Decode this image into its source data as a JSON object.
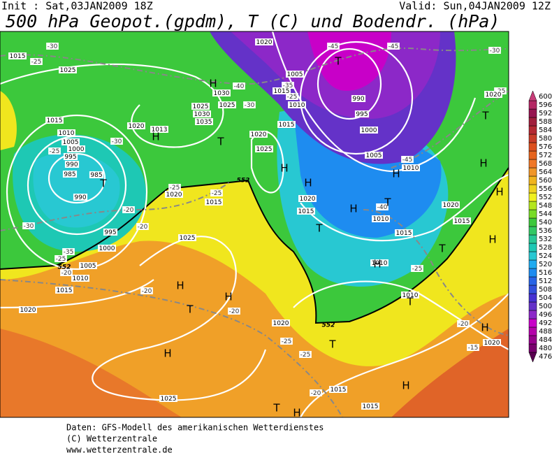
{
  "header": {
    "init": "Init : Sat,03JAN2009 18Z",
    "valid": "Valid: Sun,04JAN2009 12Z",
    "title": "500 hPa Geopot.(gpdm), T (C) und Bodendr. (hPa)"
  },
  "map": {
    "isobar_labels": [
      "1015",
      "1025",
      "1020",
      "1013",
      "1025",
      "1030",
      "1035",
      "1025",
      "1030",
      "1020",
      "1005",
      "1015",
      "1010",
      "1015",
      "1020",
      "1025",
      "990",
      "995",
      "1000",
      "1005",
      "1010",
      "1020",
      "1020",
      "1015",
      "1015",
      "1010",
      "1020",
      "1015",
      "1015",
      "1020",
      "1025",
      "1015",
      "1010",
      "1005",
      "1000",
      "995",
      "990",
      "985",
      "985",
      "990",
      "995",
      "1000",
      "1005",
      "1010",
      "1015",
      "1020",
      "1025",
      "1020",
      "1015",
      "1015",
      "1010",
      "1010",
      "1020"
    ],
    "temperature_labels": [
      "-30",
      "-25",
      "-40",
      "-35",
      "-25",
      "-30",
      "-25",
      "-30",
      "-20",
      "-20",
      "-30",
      "-35",
      "-25",
      "-20",
      "-25",
      "-25",
      "-45",
      "-45",
      "-45",
      "-40",
      "-30",
      "-25",
      "-25",
      "-20",
      "-20",
      "-25",
      "-25",
      "-20",
      "-20",
      "-15"
    ],
    "pressure_centers": [
      "H",
      "T",
      "T",
      "H",
      "T",
      "T",
      "H",
      "H",
      "H",
      "T",
      "H",
      "H",
      "H",
      "T",
      "H",
      "H",
      "T",
      "T",
      "H",
      "T",
      "H",
      "H",
      "T",
      "H",
      "T",
      "H",
      "H"
    ],
    "height_labels": [
      "552",
      "552",
      "552"
    ]
  },
  "colorbar": {
    "levels": [
      476,
      480,
      484,
      488,
      492,
      496,
      500,
      504,
      508,
      512,
      516,
      520,
      524,
      528,
      532,
      536,
      540,
      544,
      548,
      552,
      556,
      560,
      564,
      568,
      572,
      576,
      580,
      584,
      588,
      592,
      596,
      600
    ],
    "colors": [
      "#5a0050",
      "#78006e",
      "#96008c",
      "#b400aa",
      "#c800c8",
      "#8c28c8",
      "#6432c8",
      "#4632d2",
      "#3250dc",
      "#2864e6",
      "#1e8cf0",
      "#1eaaf0",
      "#28c8d2",
      "#1ec8b4",
      "#28c896",
      "#32c864",
      "#3cc83c",
      "#78dc28",
      "#b4e61e",
      "#f0f01e",
      "#f0d21e",
      "#f0b41e",
      "#f09628",
      "#f07828",
      "#e6641e",
      "#dc501e",
      "#c83c28",
      "#b42832",
      "#a01e3c",
      "#961450",
      "#b42864",
      "#c83c78"
    ]
  },
  "footer": {
    "line1": "Daten: GFS-Modell des amerikanischen Wetterdienstes",
    "line2": "(C) Wetterzentrale",
    "line3": "www.wetterzentrale.de"
  }
}
